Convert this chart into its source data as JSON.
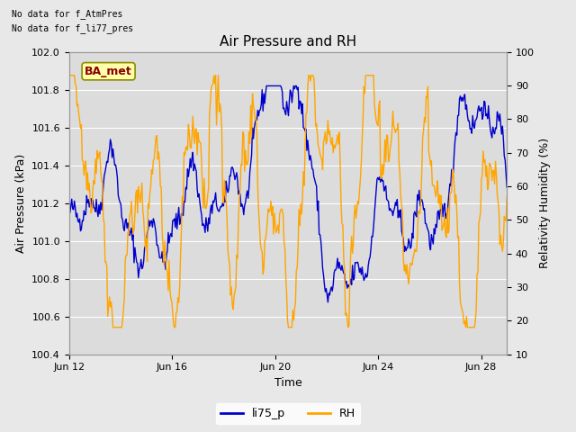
{
  "title": "Air Pressure and RH",
  "xlabel": "Time",
  "ylabel_left": "Air Pressure (kPa)",
  "ylabel_right": "Relativity Humidity (%)",
  "ylim_left": [
    100.4,
    102.0
  ],
  "ylim_right": [
    10,
    100
  ],
  "yticks_left": [
    100.4,
    100.6,
    100.8,
    101.0,
    101.2,
    101.4,
    101.6,
    101.8,
    102.0
  ],
  "yticks_right": [
    10,
    20,
    30,
    40,
    50,
    60,
    70,
    80,
    90,
    100
  ],
  "xtick_labels": [
    "Jun 12",
    "Jun 16",
    "Jun 20",
    "Jun 24",
    "Jun 28"
  ],
  "xtick_positions": [
    0,
    4,
    8,
    12,
    16
  ],
  "xlim": [
    0,
    17
  ],
  "no_data_text1": "No data for f_AtmPres",
  "no_data_text2": "No data for f_li77_pres",
  "ba_met_label": "BA_met",
  "line_blue_color": "#0000CC",
  "line_orange_color": "#FFA500",
  "fig_bg_color": "#E8E8E8",
  "plot_bg_color": "#DCDCDC",
  "legend_items": [
    "li75_p",
    "RH"
  ],
  "title_fontsize": 11,
  "axis_label_fontsize": 9,
  "tick_fontsize": 8,
  "no_data_fontsize": 7,
  "ba_met_fontsize": 9,
  "legend_fontsize": 9
}
